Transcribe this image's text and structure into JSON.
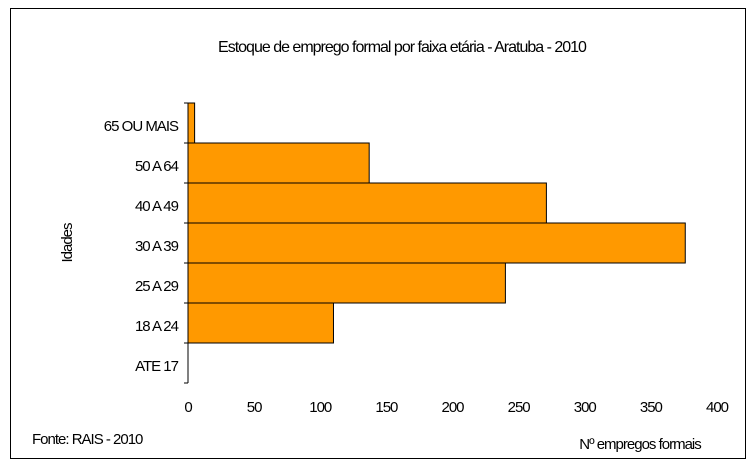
{
  "chart_data": {
    "type": "barh",
    "title": "Estoque de emprego formal por faixa etária - Aratuba - 2010",
    "categories": [
      "ATE 17",
      "18 A 24",
      "25 A 29",
      "30 A 39",
      "40 A 49",
      "50 A 64",
      "65 OU MAIS"
    ],
    "values": [
      0,
      110,
      240,
      376,
      271,
      137,
      5
    ],
    "color": "#ff9900",
    "xlim": [
      0,
      400
    ],
    "xticks": [
      0,
      50,
      100,
      150,
      200,
      250,
      300,
      350,
      400
    ],
    "xlabel": "Nº empregos formais",
    "ylabel": "Idades",
    "source": "Fonte: RAIS - 2010"
  }
}
